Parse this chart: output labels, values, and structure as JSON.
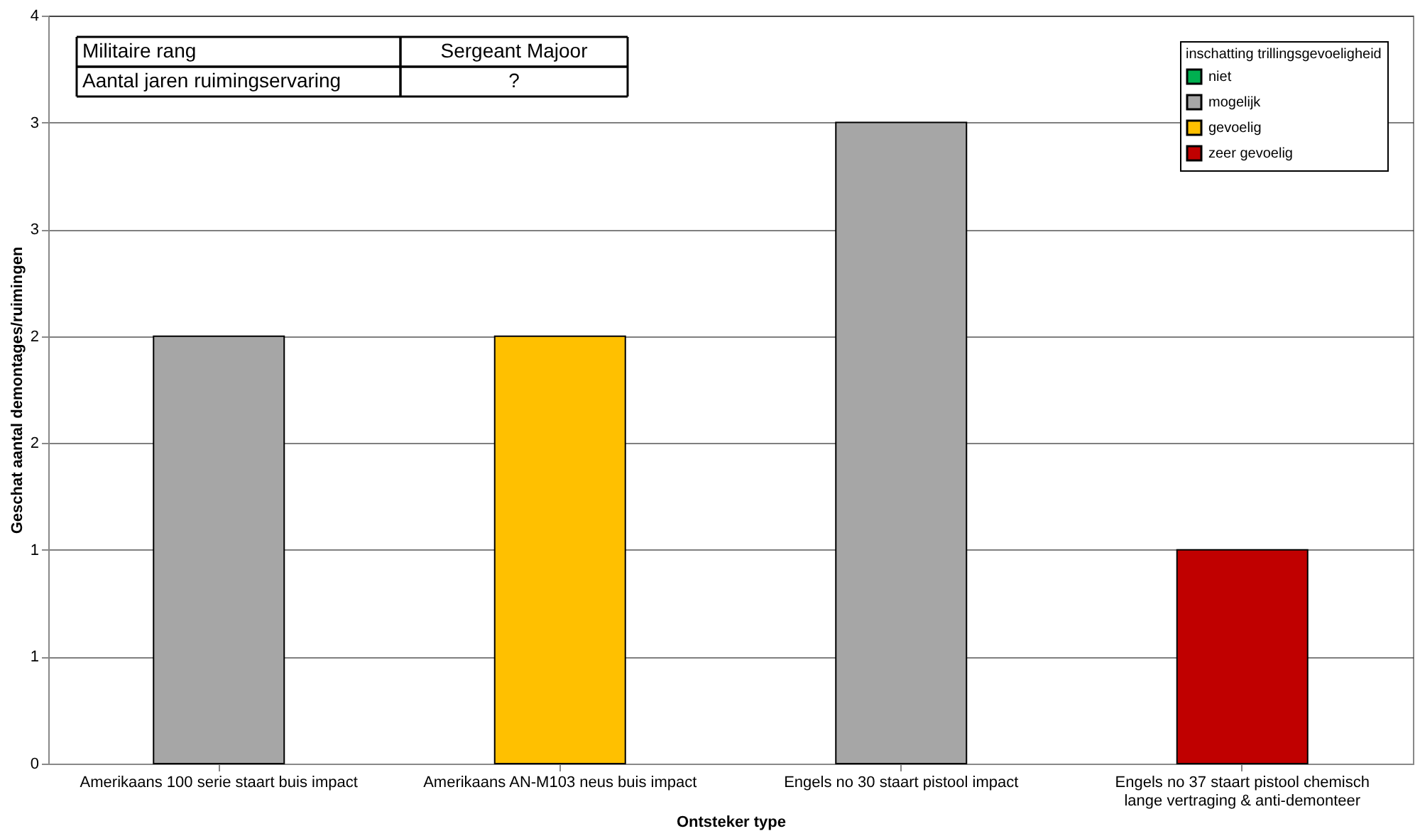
{
  "chart_data": {
    "type": "bar",
    "xlabel": "Ontsteker type",
    "ylabel": "Geschat aantal demontages/ruimingen",
    "categories": [
      "Amerikaans 100 serie staart buis impact",
      "Amerikaans AN-M103 neus buis impact",
      "Engels no 30 staart pistool impact",
      "Engels no 37 staart pistool chemisch\nlange vertraging & anti-demonteer"
    ],
    "series": [
      {
        "name": "niet",
        "color": "#00b050",
        "values": [
          null,
          null,
          null,
          null
        ]
      },
      {
        "name": "mogelijk",
        "color": "#a6a6a6",
        "values": [
          2,
          null,
          3,
          null
        ]
      },
      {
        "name": "gevoelig",
        "color": "#ffc000",
        "values": [
          null,
          2,
          null,
          null
        ]
      },
      {
        "name": "zeer gevoelig",
        "color": "#c00000",
        "values": [
          null,
          null,
          null,
          1
        ]
      }
    ],
    "legend_title": "inschatting trillingsgevoeligheid",
    "legend": "top right",
    "ylim": [
      0,
      3.5
    ],
    "yticks": [
      0,
      {
        "value": 0.5,
        "label": "1"
      },
      1,
      {
        "value": 1.5,
        "label": "2"
      },
      2,
      {
        "value": 2.5,
        "label": "3"
      },
      3,
      {
        "value": 3.5,
        "label": "4"
      }
    ],
    "grid": "y",
    "annotations": [
      "Militaire rang",
      "Sergeant Majoor",
      "Aantal jaren ruimingservaring",
      "?"
    ]
  }
}
